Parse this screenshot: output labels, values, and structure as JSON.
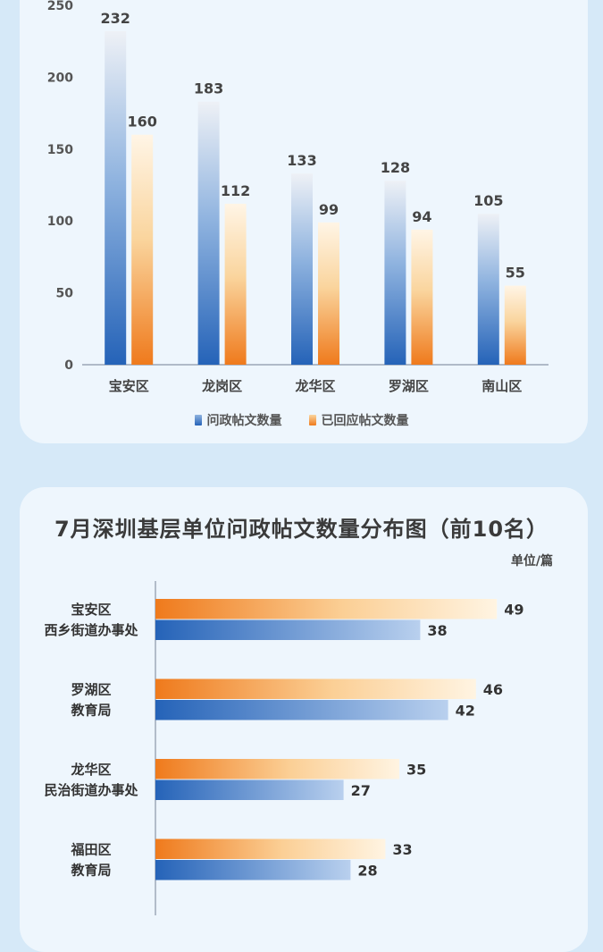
{
  "chart_data": [
    {
      "type": "bar",
      "categories": [
        "宝安区",
        "龙岗区",
        "龙华区",
        "罗湖区",
        "南山区"
      ],
      "series": [
        {
          "name": "问政帖文数量",
          "values": [
            232,
            183,
            133,
            128,
            105
          ],
          "color": "#2f6fc0"
        },
        {
          "name": "已回应帖文数量",
          "values": [
            160,
            112,
            99,
            94,
            55
          ],
          "color": "#ef8a2b"
        }
      ],
      "yticks": [
        0,
        50,
        100,
        150,
        200,
        250
      ],
      "ylim": [
        0,
        250
      ],
      "legend": "bottom",
      "grid": false
    },
    {
      "type": "bar",
      "orientation": "horizontal",
      "title": "7月深圳基层单位问政帖文数量分布图（前10名）",
      "unit": "单位/篇",
      "categories": [
        [
          "宝安区",
          "西乡街道办事处"
        ],
        [
          "罗湖区",
          "教育局"
        ],
        [
          "龙华区",
          "民治街道办事处"
        ],
        [
          "福田区",
          "教育局"
        ]
      ],
      "series": [
        {
          "values": [
            49,
            46,
            35,
            33
          ],
          "color": "#ef8a2b"
        },
        {
          "values": [
            38,
            42,
            27,
            28
          ],
          "color": "#2f6fc0"
        }
      ]
    }
  ]
}
